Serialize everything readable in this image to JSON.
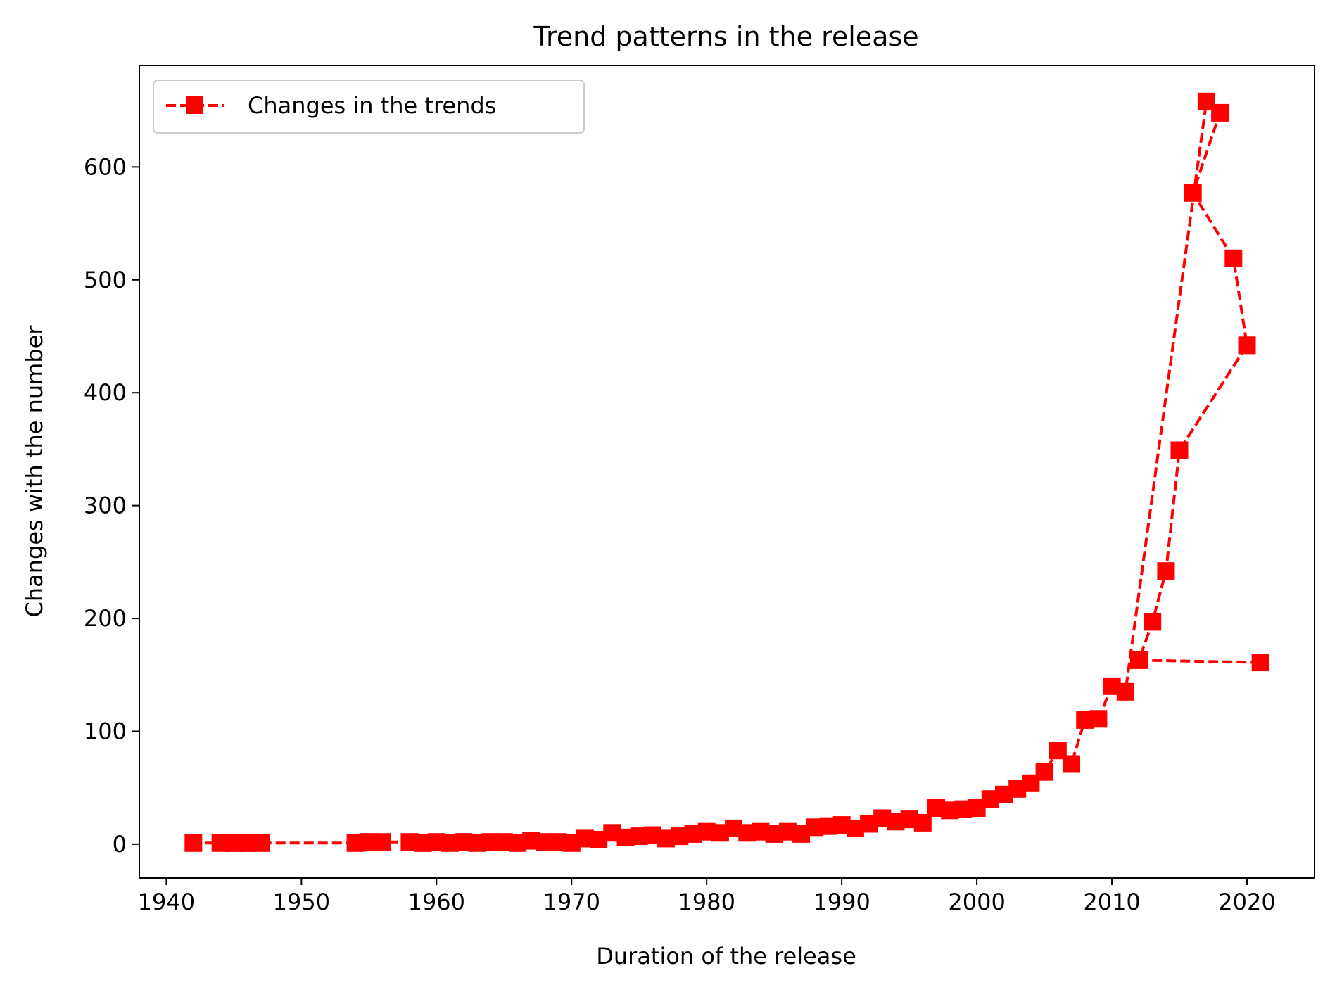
{
  "chart_data": {
    "type": "line",
    "title": "Trend patterns in the release",
    "xlabel": "Duration of the release",
    "ylabel": "Changes with the number",
    "xlim": [
      1938,
      2025
    ],
    "ylim": [
      -30,
      690
    ],
    "xticks": [
      "1940",
      "1950",
      "1960",
      "1970",
      "1980",
      "1990",
      "2000",
      "2010",
      "2020"
    ],
    "yticks": [
      "0",
      "100",
      "200",
      "300",
      "400",
      "500",
      "600"
    ],
    "grid": false,
    "legend_position": "top-left",
    "series": [
      {
        "name": "Changes in the trends",
        "color": "#ff0000",
        "line_style": "dashed",
        "marker": "square",
        "points": [
          [
            2021,
            161
          ],
          [
            2012,
            163
          ],
          [
            2013,
            197
          ],
          [
            2014,
            242
          ],
          [
            2015,
            349
          ],
          [
            2020,
            442
          ],
          [
            2019,
            519
          ],
          [
            2016,
            577
          ],
          [
            2018,
            648
          ],
          [
            2017,
            658
          ],
          [
            2011,
            135
          ],
          [
            2010,
            140
          ],
          [
            2009,
            111
          ],
          [
            2008,
            110
          ],
          [
            2007,
            71
          ],
          [
            2006,
            83
          ],
          [
            2005,
            64
          ],
          [
            2004,
            54
          ],
          [
            2003,
            49
          ],
          [
            2002,
            44
          ],
          [
            2001,
            40
          ],
          [
            2000,
            32
          ],
          [
            1999,
            31
          ],
          [
            1998,
            30
          ],
          [
            1997,
            32
          ],
          [
            1996,
            19
          ],
          [
            1995,
            22
          ],
          [
            1994,
            20
          ],
          [
            1993,
            23
          ],
          [
            1992,
            18
          ],
          [
            1991,
            14
          ],
          [
            1990,
            17
          ],
          [
            1989,
            16
          ],
          [
            1988,
            15
          ],
          [
            1987,
            9
          ],
          [
            1986,
            11
          ],
          [
            1985,
            9
          ],
          [
            1984,
            11
          ],
          [
            1983,
            10
          ],
          [
            1982,
            14
          ],
          [
            1981,
            10
          ],
          [
            1980,
            11
          ],
          [
            1979,
            9
          ],
          [
            1978,
            7
          ],
          [
            1977,
            5
          ],
          [
            1976,
            8
          ],
          [
            1975,
            7
          ],
          [
            1974,
            6
          ],
          [
            1973,
            10
          ],
          [
            1972,
            4
          ],
          [
            1971,
            5
          ],
          [
            1970,
            1
          ],
          [
            1969,
            2
          ],
          [
            1968,
            2
          ],
          [
            1967,
            3
          ],
          [
            1966,
            1
          ],
          [
            1965,
            2
          ],
          [
            1964,
            2
          ],
          [
            1963,
            1
          ],
          [
            1962,
            2
          ],
          [
            1961,
            1
          ],
          [
            1960,
            2
          ],
          [
            1959,
            1
          ],
          [
            1958,
            2
          ],
          [
            1956,
            2
          ],
          [
            1955,
            2
          ],
          [
            1954,
            1
          ],
          [
            1947,
            1
          ],
          [
            1946,
            1
          ],
          [
            1945,
            1
          ],
          [
            1944,
            1
          ],
          [
            1942,
            1
          ]
        ]
      }
    ]
  }
}
